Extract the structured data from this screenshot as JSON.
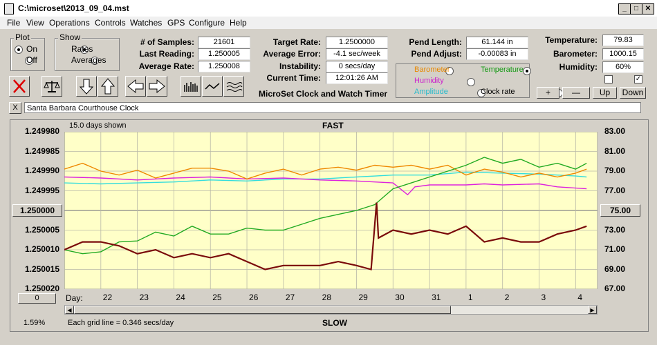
{
  "window": {
    "title": "C:\\microset\\2013_09_04.mst"
  },
  "menu": [
    "File",
    "View",
    "Operations",
    "Controls",
    "Watches",
    "GPS",
    "Configure",
    "Help"
  ],
  "plot_group": {
    "title": "Plot",
    "on": "On",
    "off": "Off"
  },
  "show_group": {
    "title": "Show",
    "rates": "Rates",
    "averages": "Averages"
  },
  "stats": {
    "samples_label": "# of Samples:",
    "samples": "21601",
    "last_label": "Last Reading:",
    "last": "1.250005",
    "avg_label": "Average Rate:",
    "avg": "1.250008",
    "target_label": "Target Rate:",
    "target": "1.2500000",
    "avgerr_label": "Average Error:",
    "avgerr": "-4.1 sec/week",
    "instab_label": "Instability:",
    "instab": "0 secs/day",
    "time_label": "Current Time:",
    "time": "12:01:26 AM",
    "pend_len_label": "Pend Length:",
    "pend_len": "61.144 in",
    "pend_adj_label": "Pend Adjust:",
    "pend_adj": "-0.00083 in",
    "temp_label": "Temperature:",
    "temp": "79.83",
    "baro_label": "Barometer:",
    "baro": "1000.15",
    "hum_label": "Humidity:",
    "hum": "60%"
  },
  "app_caption": "MicroSet Clock and Watch Timer",
  "sensor_options": {
    "barometer": "Barometer",
    "temperature": "Temperature",
    "humidity": "Humidity",
    "amplitude": "Amplitude",
    "clock_rate": "Clock rate"
  },
  "adjust_buttons": {
    "plus": "+",
    "minus": "—",
    "up": "Up",
    "down": "Down"
  },
  "clock_name": "Santa Barbara Courthouse Clock",
  "close_x": "X",
  "plot": {
    "days_shown": "15.0 days shown",
    "top_label": "FAST",
    "bottom_label": "SLOW",
    "grid_note": "Each grid line = 0.346 secs/day",
    "percent": "1.59%",
    "center_left": "1.250000",
    "center_right": "75.00",
    "bottom_button": "0",
    "day_prefix": "Day:"
  },
  "colors": {
    "plot_bg": "#ffffc8",
    "rate": "#7a0a0a",
    "temperature": "#22aa22",
    "barometer": "#ee8800",
    "humidity": "#dd22dd",
    "amplitude": "#33dddd"
  },
  "chart_data": {
    "type": "line",
    "title": "",
    "xlabel": "Day:",
    "x_ticks": [
      "22",
      "23",
      "24",
      "25",
      "26",
      "27",
      "28",
      "29",
      "30",
      "31",
      "1",
      "2",
      "3",
      "4"
    ],
    "y_left_ticks": [
      "1.249980",
      "1.249985",
      "1.249990",
      "1.249995",
      "1.250000",
      "1.250005",
      "1.250010",
      "1.250015",
      "1.250020"
    ],
    "y_right_ticks": [
      "83.00",
      "81.00",
      "79.00",
      "77.00",
      "75.00",
      "73.00",
      "71.00",
      "69.00",
      "67.00"
    ],
    "ylim_left": [
      1.24998,
      1.25002
    ],
    "ylim_right": [
      67,
      83
    ],
    "grid": true,
    "series": [
      {
        "name": "",
        "axis": "left",
        "values": [
          [
            21.0,
            1.25001
          ],
          [
            21.5,
            1.250008
          ],
          [
            22.0,
            1.250008
          ],
          [
            22.5,
            1.250009
          ],
          [
            23.0,
            1.250011
          ],
          [
            23.5,
            1.25001
          ],
          [
            24.0,
            1.250012
          ],
          [
            24.5,
            1.250011
          ],
          [
            25.0,
            1.250012
          ],
          [
            25.5,
            1.250011
          ],
          [
            26.0,
            1.250013
          ],
          [
            26.5,
            1.250015
          ],
          [
            27.0,
            1.250014
          ],
          [
            27.5,
            1.250014
          ],
          [
            28.0,
            1.250014
          ],
          [
            28.5,
            1.250013
          ],
          [
            29.0,
            1.250014
          ],
          [
            29.4,
            1.250015
          ],
          [
            29.55,
            1.249998
          ],
          [
            29.6,
            1.250007
          ],
          [
            30.0,
            1.250005
          ],
          [
            30.5,
            1.250006
          ],
          [
            31.0,
            1.250005
          ],
          [
            31.5,
            1.250006
          ],
          [
            32.0,
            1.250004
          ],
          [
            32.5,
            1.250008
          ],
          [
            33.0,
            1.250007
          ],
          [
            33.5,
            1.250008
          ],
          [
            34.0,
            1.250008
          ],
          [
            34.5,
            1.250006
          ],
          [
            35.0,
            1.250005
          ],
          [
            35.3,
            1.250004
          ]
        ]
      },
      {
        "name": "Temperature",
        "axis": "right",
        "values": [
          [
            21.0,
            71.0
          ],
          [
            21.5,
            70.6
          ],
          [
            22.0,
            70.8
          ],
          [
            22.5,
            71.8
          ],
          [
            23.0,
            71.9
          ],
          [
            23.5,
            72.8
          ],
          [
            24.0,
            72.4
          ],
          [
            24.5,
            73.4
          ],
          [
            25.0,
            72.6
          ],
          [
            25.5,
            72.6
          ],
          [
            26.0,
            73.2
          ],
          [
            26.5,
            73.0
          ],
          [
            27.0,
            73.0
          ],
          [
            27.5,
            73.6
          ],
          [
            28.0,
            74.2
          ],
          [
            28.5,
            74.6
          ],
          [
            29.0,
            75.0
          ],
          [
            29.5,
            75.6
          ],
          [
            30.0,
            77.2
          ],
          [
            30.5,
            77.8
          ],
          [
            31.0,
            78.4
          ],
          [
            31.5,
            79.0
          ],
          [
            32.0,
            79.6
          ],
          [
            32.5,
            80.4
          ],
          [
            33.0,
            79.8
          ],
          [
            33.5,
            80.2
          ],
          [
            34.0,
            79.4
          ],
          [
            34.5,
            79.8
          ],
          [
            35.0,
            79.2
          ],
          [
            35.3,
            79.8
          ]
        ]
      },
      {
        "name": "Barometer",
        "axis": "right",
        "values": [
          [
            21.0,
            79.2
          ],
          [
            21.5,
            79.8
          ],
          [
            22.0,
            79.0
          ],
          [
            22.5,
            78.6
          ],
          [
            23.0,
            79.1
          ],
          [
            23.5,
            78.3
          ],
          [
            24.0,
            78.8
          ],
          [
            24.5,
            79.3
          ],
          [
            25.0,
            79.3
          ],
          [
            25.5,
            79.0
          ],
          [
            26.0,
            78.2
          ],
          [
            26.5,
            78.8
          ],
          [
            27.0,
            79.2
          ],
          [
            27.5,
            78.6
          ],
          [
            28.0,
            79.2
          ],
          [
            28.5,
            79.4
          ],
          [
            29.0,
            79.1
          ],
          [
            29.5,
            79.6
          ],
          [
            30.0,
            79.4
          ],
          [
            30.5,
            79.6
          ],
          [
            31.0,
            79.2
          ],
          [
            31.5,
            79.6
          ],
          [
            32.0,
            78.6
          ],
          [
            32.5,
            79.2
          ],
          [
            33.0,
            78.9
          ],
          [
            33.5,
            78.4
          ],
          [
            34.0,
            78.8
          ],
          [
            34.5,
            78.4
          ],
          [
            35.0,
            78.8
          ],
          [
            35.3,
            79.2
          ]
        ]
      },
      {
        "name": "Humidity",
        "axis": "right",
        "values": [
          [
            21.0,
            78.4
          ],
          [
            22.0,
            78.3
          ],
          [
            23.0,
            78.1
          ],
          [
            24.0,
            78.3
          ],
          [
            25.0,
            78.4
          ],
          [
            26.0,
            78.2
          ],
          [
            27.0,
            78.3
          ],
          [
            28.0,
            78.1
          ],
          [
            29.0,
            78.0
          ],
          [
            29.5,
            77.9
          ],
          [
            30.0,
            77.8
          ],
          [
            30.4,
            76.6
          ],
          [
            30.6,
            77.4
          ],
          [
            31.0,
            77.6
          ],
          [
            32.0,
            77.6
          ],
          [
            32.5,
            77.7
          ],
          [
            33.0,
            77.6
          ],
          [
            34.0,
            77.7
          ],
          [
            34.5,
            77.4
          ],
          [
            35.3,
            77.2
          ]
        ]
      },
      {
        "name": "Amplitude",
        "axis": "right",
        "values": [
          [
            21.0,
            77.8
          ],
          [
            22.0,
            77.7
          ],
          [
            23.0,
            77.8
          ],
          [
            24.0,
            77.9
          ],
          [
            25.0,
            78.1
          ],
          [
            26.0,
            78.0
          ],
          [
            27.0,
            78.2
          ],
          [
            28.0,
            78.2
          ],
          [
            29.0,
            78.4
          ],
          [
            30.0,
            78.6
          ],
          [
            31.0,
            78.6
          ],
          [
            32.0,
            78.9
          ],
          [
            33.0,
            78.8
          ],
          [
            34.0,
            78.7
          ],
          [
            35.0,
            78.5
          ],
          [
            35.3,
            78.4
          ]
        ]
      }
    ]
  }
}
